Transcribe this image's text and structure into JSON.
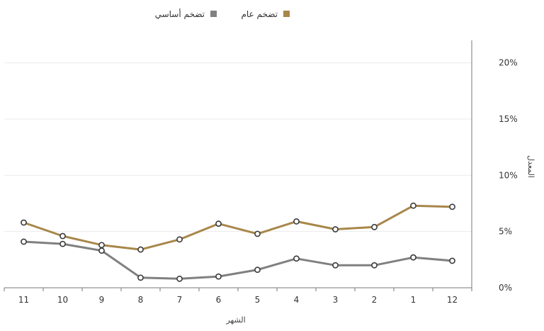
{
  "chart_data": {
    "type": "line",
    "title": "",
    "xlabel": "الشهر",
    "ylabel": "المعدل",
    "categories": [
      "11",
      "10",
      "9",
      "8",
      "7",
      "6",
      "5",
      "4",
      "3",
      "2",
      "1",
      "12"
    ],
    "y_ticks": [
      "0%",
      "5%",
      "10%",
      "15%",
      "20%"
    ],
    "ylim": [
      0,
      22
    ],
    "y_axis_position": "right",
    "grid": true,
    "legend_position": "top-center",
    "series": [
      {
        "name": "تضخم عام",
        "color": "#a8874a",
        "values": [
          5.8,
          4.6,
          3.8,
          3.4,
          4.3,
          5.7,
          4.8,
          5.9,
          5.2,
          5.4,
          7.3,
          7.2
        ]
      },
      {
        "name": "تضخم أساسي",
        "color": "#808080",
        "values": [
          4.1,
          3.9,
          3.3,
          0.9,
          0.8,
          1.0,
          1.6,
          2.6,
          2.0,
          2.0,
          2.7,
          2.4
        ]
      }
    ]
  }
}
